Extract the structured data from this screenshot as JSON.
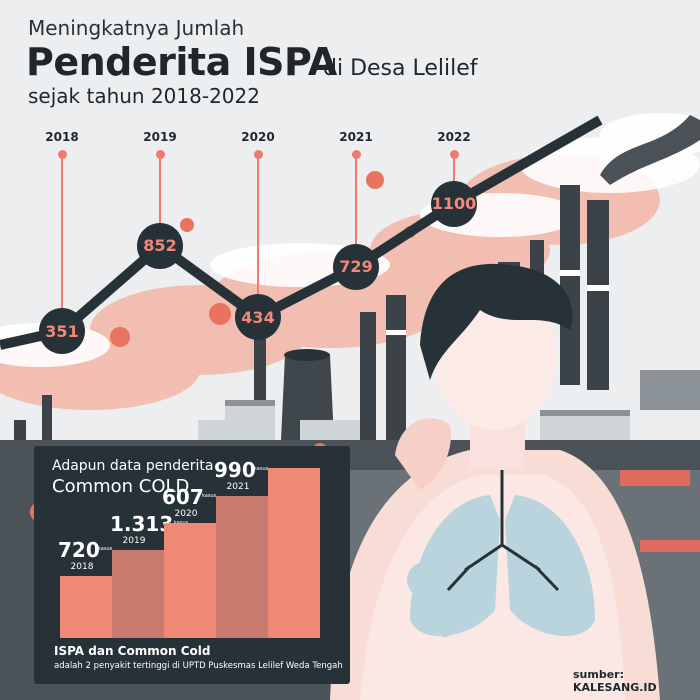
{
  "title": {
    "line1": "Meningkatnya Jumlah",
    "line2": "Penderita ISPA",
    "location": "di Desa Lelilef",
    "period": "sejak tahun 2018-2022"
  },
  "chart_data": [
    {
      "type": "line",
      "title": "Penderita ISPA di Desa Lelilef",
      "x": [
        "2018",
        "2019",
        "2020",
        "2021",
        "2022"
      ],
      "series": [
        {
          "values": [
            351,
            852,
            434,
            729,
            1100
          ]
        }
      ],
      "data_labels": [
        "351",
        "852",
        "434",
        "729",
        "1100"
      ],
      "ylim": [
        0,
        1200
      ],
      "colors": {
        "line": "#263238",
        "marker": "#263238",
        "label": "#f2877a",
        "pin": "#ef7b6c"
      }
    },
    {
      "type": "bar",
      "title": "Adapun data penderita",
      "subtitle": "Common COLD",
      "categories": [
        "2018",
        "2019",
        "2020",
        "2021"
      ],
      "values": [
        720,
        1313,
        607,
        990
      ],
      "data_labels": [
        "720",
        "1.313",
        "607",
        "990"
      ],
      "unit": "kasus",
      "colors": {
        "bars": [
          "#f08876",
          "#c97a6f",
          "#f08876",
          "#c97a6f",
          "#f08876"
        ],
        "panel": "#263238"
      }
    }
  ],
  "panel": {
    "heading": "Adapun data penderita",
    "subheading": "Common COLD",
    "footer_title": "ISPA dan Common Cold",
    "footer_text": "adalah 2 penyakit tertinggi di UPTD Puskesmas Lelilef Weda Tengah"
  },
  "source": "sumber: KALESANG.ID",
  "icons": [
    "virus-icon",
    "factory-illustration",
    "person-illustration",
    "lungs-icon"
  ],
  "colors": {
    "accent": "#ef7b6c",
    "dark": "#263238",
    "background": "#eceeef",
    "smoke": "#f3b3a5"
  }
}
